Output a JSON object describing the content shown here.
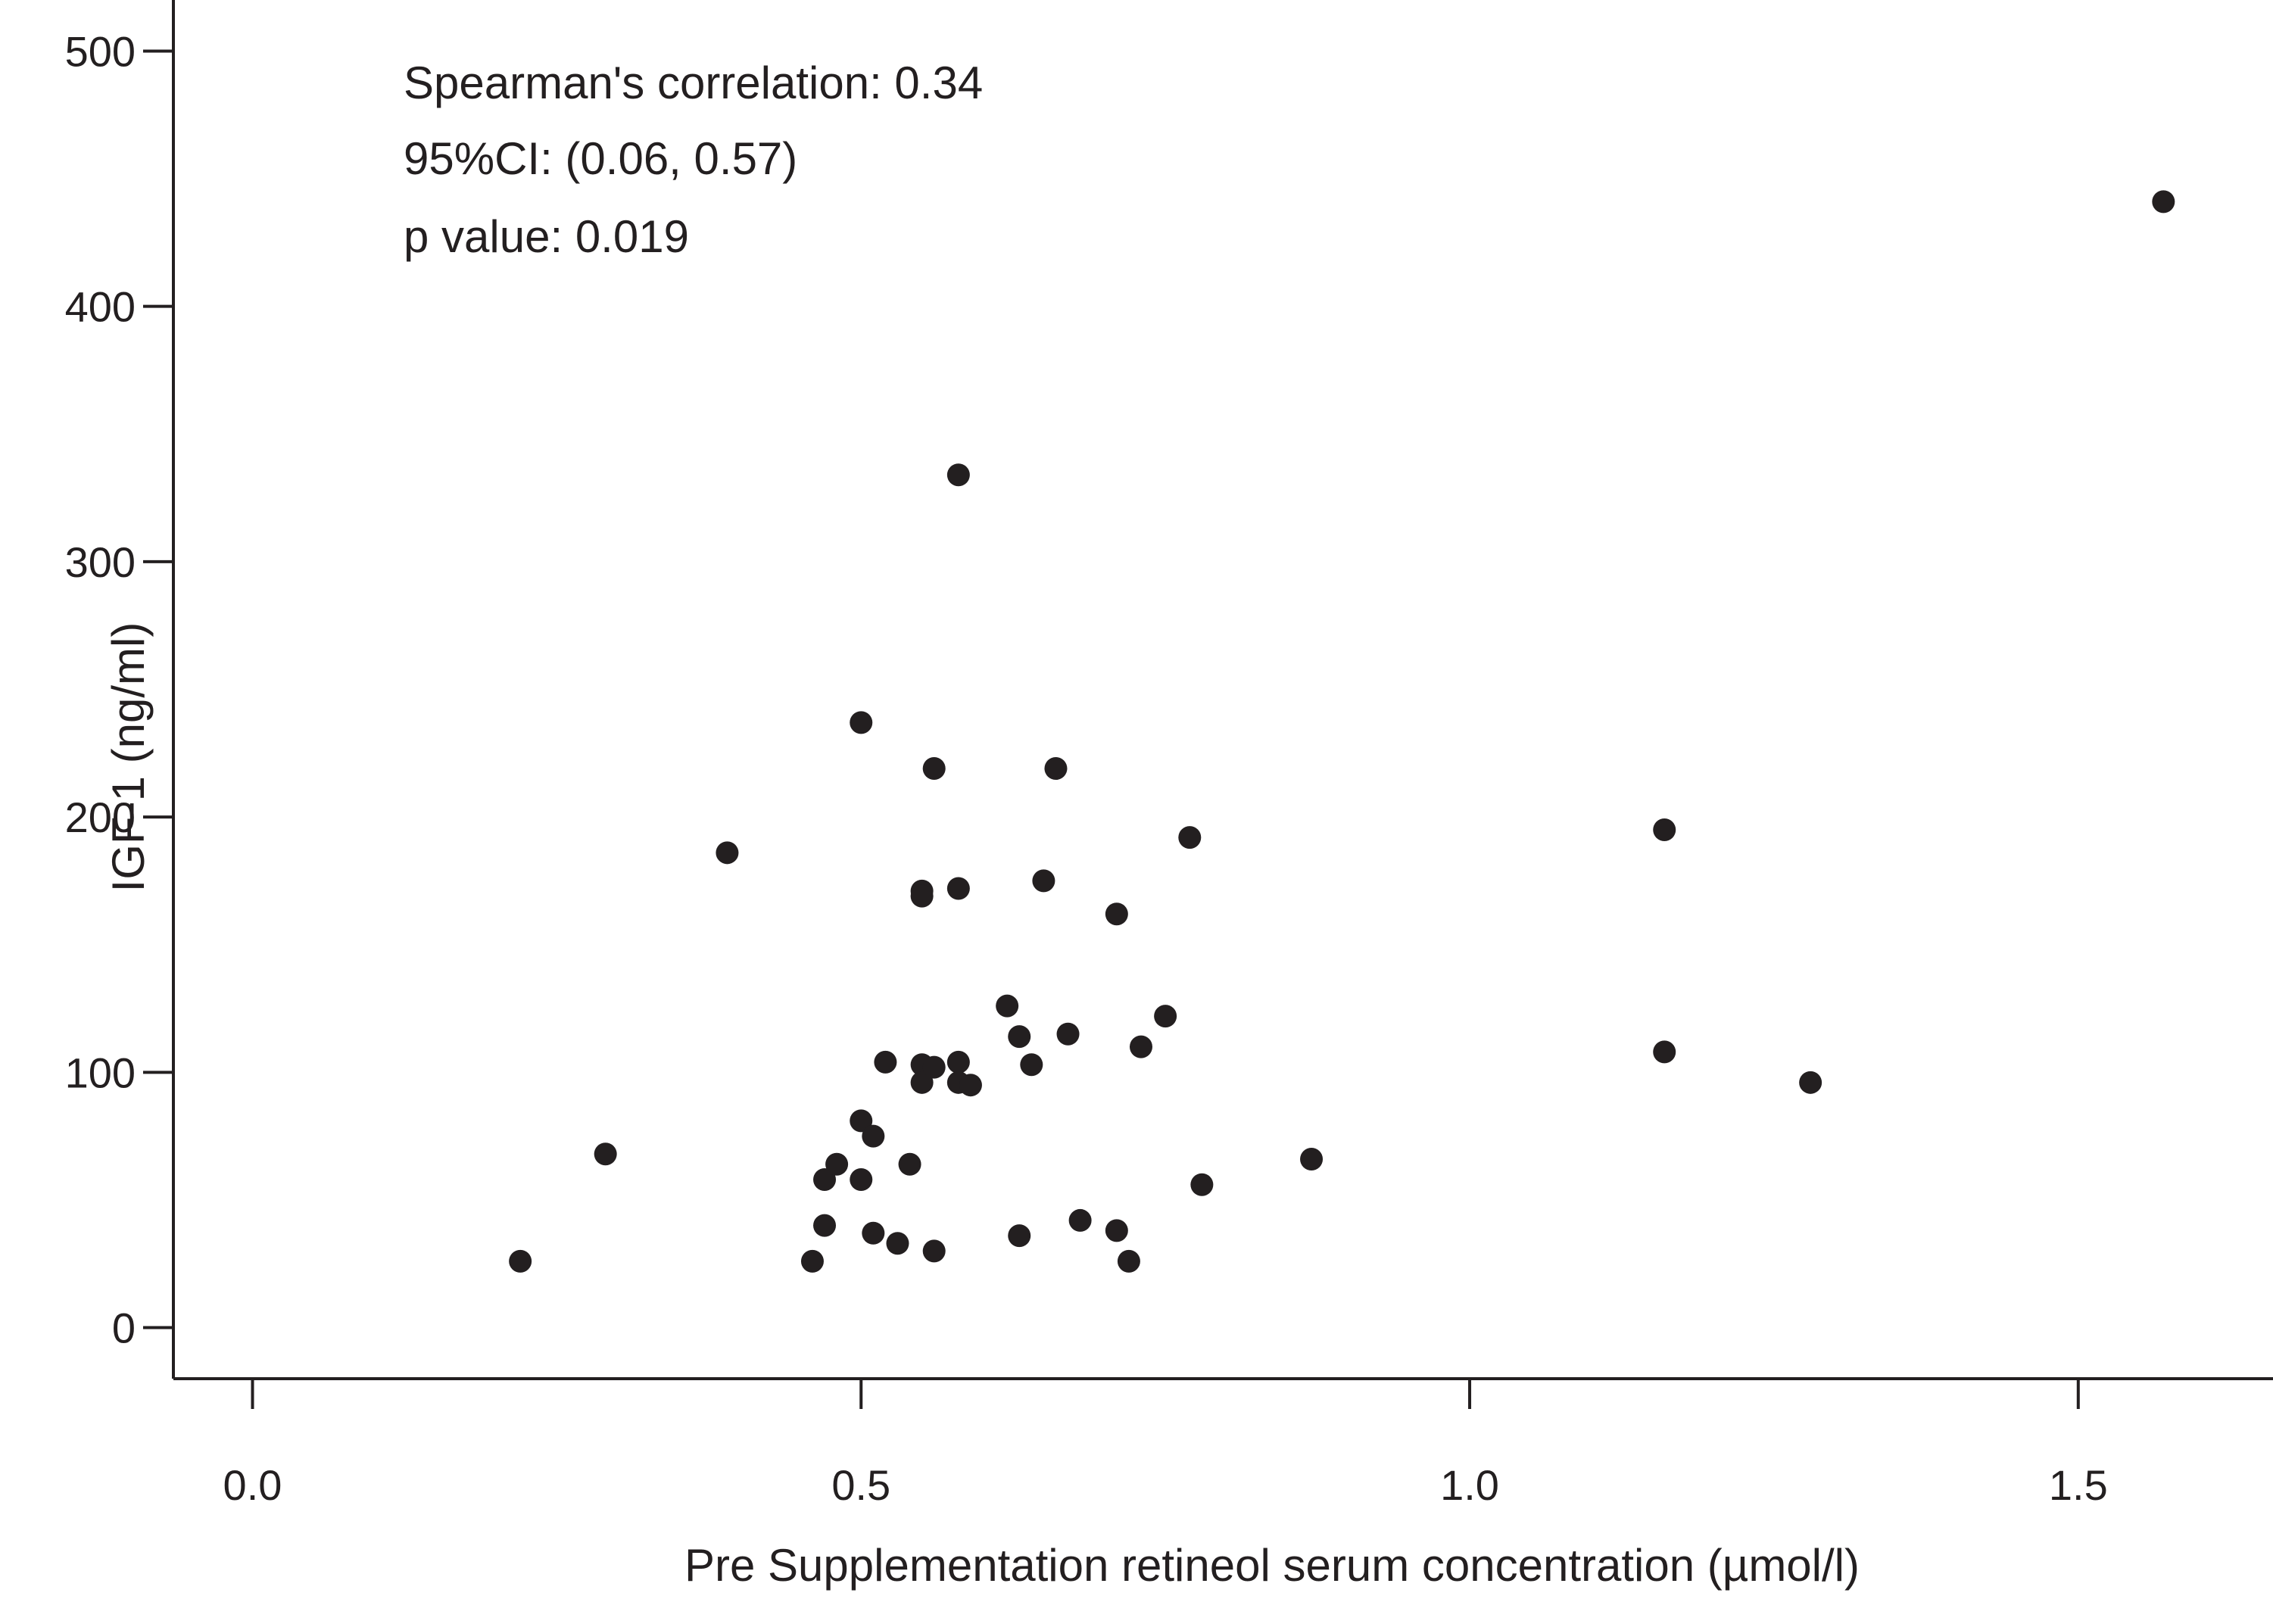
{
  "chart_data": {
    "type": "scatter",
    "xlabel": "Pre Supplementation retineol serum concentration (µmol/l)",
    "ylabel": "IGF-1 (ng/ml)",
    "xlim": [
      -0.065,
      1.66
    ],
    "ylim": [
      -20,
      520
    ],
    "xticks": [
      0.0,
      0.5,
      1.0,
      1.5
    ],
    "xtick_labels": [
      "0.0",
      "0.5",
      "1.0",
      "1.5"
    ],
    "yticks": [
      0,
      100,
      200,
      300,
      400,
      500
    ],
    "ytick_labels": [
      "0",
      "100",
      "200",
      "300",
      "400",
      "500"
    ],
    "annotations": [
      "Spearman's correlation: 0.34",
      "95%CI: (0.06, 0.57)",
      "p value: 0.019"
    ],
    "point_color": "#231f20",
    "grid": false,
    "x": [
      0.22,
      0.29,
      0.39,
      0.46,
      0.47,
      0.47,
      0.48,
      0.5,
      0.5,
      0.5,
      0.51,
      0.51,
      0.52,
      0.53,
      0.54,
      0.55,
      0.55,
      0.55,
      0.55,
      0.56,
      0.56,
      0.56,
      0.58,
      0.58,
      0.58,
      0.58,
      0.59,
      0.62,
      0.63,
      0.63,
      0.64,
      0.65,
      0.66,
      0.67,
      0.68,
      0.71,
      0.71,
      0.72,
      0.73,
      0.75,
      0.77,
      0.78,
      0.87,
      1.16,
      1.16,
      1.28,
      1.57
    ],
    "y": [
      26,
      68,
      186,
      26,
      58,
      40,
      64,
      237,
      81,
      58,
      75,
      37,
      104,
      33,
      64,
      171,
      169,
      103,
      96,
      219,
      102,
      30,
      334,
      172,
      104,
      96,
      95,
      126,
      114,
      36,
      103,
      175,
      219,
      115,
      42,
      162,
      38,
      26,
      110,
      122,
      192,
      56,
      66,
      195,
      108,
      96,
      441
    ]
  }
}
